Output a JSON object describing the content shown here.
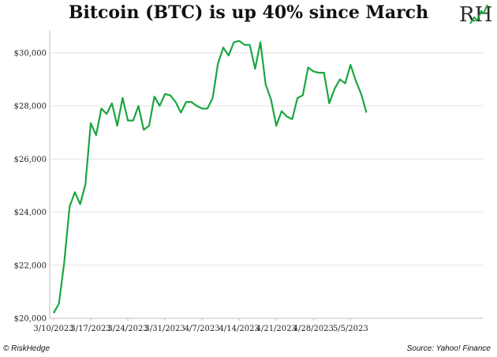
{
  "chart_data": {
    "type": "line",
    "title": "Bitcoin (BTC) is up 40% since March",
    "xlabel": "",
    "ylabel": "",
    "ylim": [
      20000,
      30800
    ],
    "y_ticks": [
      20000,
      22000,
      24000,
      26000,
      28000,
      30000
    ],
    "y_tick_labels": [
      "$20,000",
      "$22,000",
      "$24,000",
      "$26,000",
      "$28,000",
      "$30,000"
    ],
    "x_tick_labels": [
      "3/10/2023",
      "3/17/2023",
      "3/24/2023",
      "3/31/2023",
      "4/7/2023",
      "4/14/2023",
      "4/21/2023",
      "4/28/2023",
      "5/5/2023"
    ],
    "grid": "horizontal",
    "line_color": "#1aa640",
    "x": [
      "2023-03-10",
      "2023-03-11",
      "2023-03-12",
      "2023-03-13",
      "2023-03-14",
      "2023-03-15",
      "2023-03-16",
      "2023-03-17",
      "2023-03-18",
      "2023-03-19",
      "2023-03-20",
      "2023-03-21",
      "2023-03-22",
      "2023-03-23",
      "2023-03-24",
      "2023-03-25",
      "2023-03-26",
      "2023-03-27",
      "2023-03-28",
      "2023-03-29",
      "2023-03-30",
      "2023-03-31",
      "2023-04-01",
      "2023-04-02",
      "2023-04-03",
      "2023-04-04",
      "2023-04-05",
      "2023-04-06",
      "2023-04-07",
      "2023-04-08",
      "2023-04-09",
      "2023-04-10",
      "2023-04-11",
      "2023-04-12",
      "2023-04-13",
      "2023-04-14",
      "2023-04-15",
      "2023-04-16",
      "2023-04-17",
      "2023-04-18",
      "2023-04-19",
      "2023-04-20",
      "2023-04-21",
      "2023-04-22",
      "2023-04-23",
      "2023-04-24",
      "2023-04-25",
      "2023-04-26",
      "2023-04-27",
      "2023-04-28",
      "2023-04-29",
      "2023-04-30",
      "2023-05-01",
      "2023-05-02",
      "2023-05-03",
      "2023-05-04",
      "2023-05-05",
      "2023-05-06",
      "2023-05-07",
      "2023-05-08"
    ],
    "series": [
      {
        "values": [
          20200,
          20550,
          22100,
          24200,
          24750,
          24300,
          25050,
          27350,
          26900,
          27900,
          27700,
          28100,
          27250,
          28300,
          27450,
          27450,
          28000,
          27100,
          27250,
          28350,
          28000,
          28450,
          28400,
          28150,
          27750,
          28150,
          28150,
          28000,
          27900,
          27900,
          28300,
          29600,
          30200,
          29900,
          30400,
          30450,
          30300,
          30300,
          29400,
          30400,
          28800,
          28250,
          27250,
          27800,
          27600,
          27500,
          28300,
          28400,
          29450,
          29300,
          29250,
          29250,
          28100,
          28650,
          29000,
          28850,
          29550,
          28950,
          28450,
          27750
        ]
      }
    ]
  },
  "logo": {
    "text": "RH",
    "icon": "riskhedge-logo-icon"
  },
  "footer": {
    "left": "© RiskHedge",
    "right": "Source: Yahoo! Finance"
  }
}
